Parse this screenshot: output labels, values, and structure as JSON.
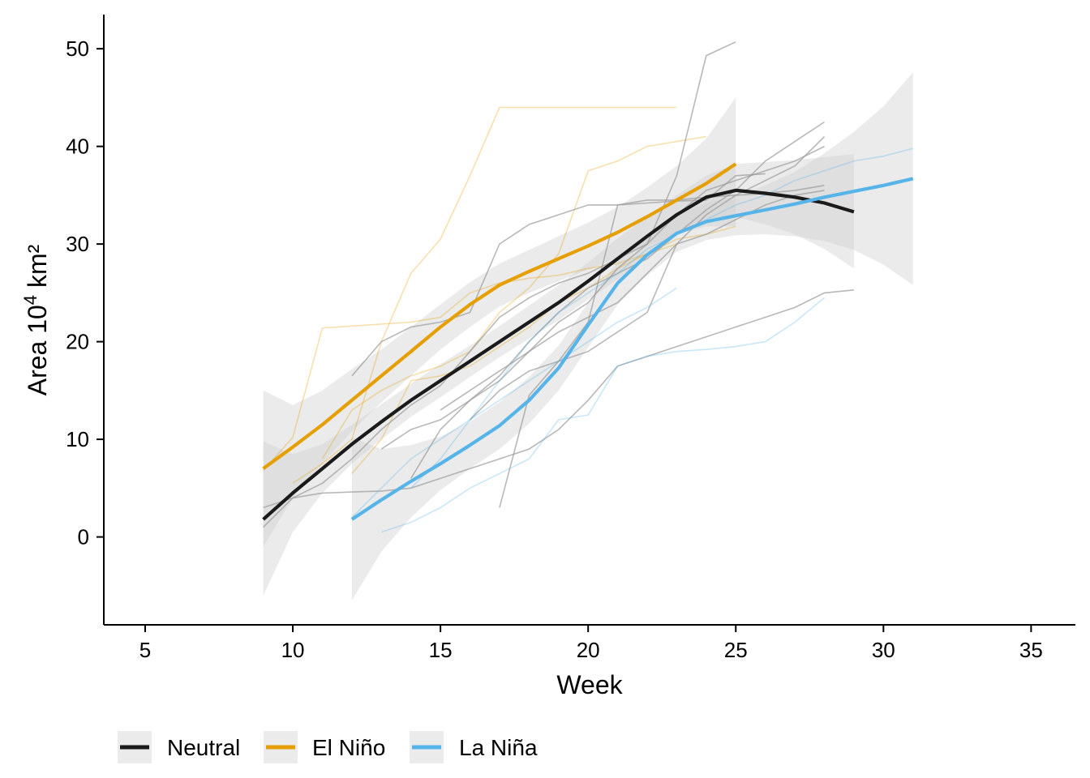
{
  "chart_data": {
    "type": "line",
    "xlabel": "Week",
    "ylabel": "Area 10",
    "ylabel_sup": "4",
    "ylabel_unit": " km²",
    "xlim": [
      3.6,
      36.5
    ],
    "ylim": [
      -9,
      53.5
    ],
    "xticks": [
      5,
      10,
      15,
      20,
      25,
      30,
      35
    ],
    "yticks": [
      0,
      10,
      20,
      30,
      40,
      50
    ],
    "grid": false,
    "legend_position": "bottom-left",
    "colors": {
      "Neutral": "#1a1a1a",
      "El Niño": "#E69F00",
      "La Niña": "#56B4E9",
      "ribbon": "#d0d0d0"
    },
    "series": [
      {
        "name": "Neutral",
        "x": [
          9,
          10,
          11,
          12,
          13,
          14,
          15,
          16,
          17,
          18,
          19,
          20,
          21,
          22,
          23,
          24,
          25,
          26,
          27,
          28,
          29
        ],
        "values": [
          1.8,
          4.5,
          7.0,
          9.5,
          11.8,
          14.0,
          16.0,
          18.0,
          20.0,
          22.0,
          24.0,
          26.2,
          28.5,
          30.8,
          33.0,
          34.8,
          35.5,
          35.2,
          34.8,
          34.2,
          33.3
        ],
        "ci_lower": [
          -6.0,
          0.5,
          4.5,
          7.5,
          10.0,
          12.3,
          14.3,
          16.4,
          18.4,
          20.3,
          22.2,
          24.3,
          26.4,
          28.8,
          31.0,
          32.6,
          32.8,
          32.0,
          31.0,
          29.5,
          27.5
        ],
        "ci_upper": [
          9.8,
          8.5,
          9.5,
          11.5,
          13.6,
          15.7,
          17.7,
          19.6,
          21.6,
          23.7,
          25.8,
          28.1,
          30.6,
          32.8,
          35.0,
          37.0,
          38.2,
          38.4,
          38.6,
          38.9,
          39.2
        ]
      },
      {
        "name": "El Niño",
        "x": [
          9,
          10,
          11,
          12,
          13,
          14,
          15,
          16,
          17,
          18,
          19,
          20,
          21,
          22,
          23,
          24,
          25
        ],
        "values": [
          7.0,
          9.2,
          11.5,
          14.0,
          16.5,
          19.0,
          21.5,
          23.8,
          25.8,
          27.2,
          28.5,
          29.8,
          31.2,
          32.8,
          34.5,
          36.2,
          38.2
        ],
        "ci_lower": [
          -1.0,
          4.0,
          7.5,
          10.8,
          13.8,
          16.5,
          19.2,
          21.5,
          23.6,
          25.0,
          26.2,
          27.4,
          28.6,
          29.8,
          31.0,
          31.8,
          31.8
        ],
        "ci_upper": [
          15.0,
          13.5,
          15.0,
          17.2,
          19.2,
          21.5,
          23.8,
          26.1,
          28.0,
          29.4,
          30.8,
          32.2,
          33.8,
          35.8,
          38.0,
          40.8,
          45.0
        ]
      },
      {
        "name": "La Niña",
        "x": [
          12,
          13,
          14,
          15,
          16,
          17,
          18,
          19,
          20,
          21,
          22,
          23,
          24,
          25,
          26,
          27,
          28,
          29,
          30,
          31
        ],
        "values": [
          1.8,
          3.8,
          5.7,
          7.5,
          9.4,
          11.4,
          14.0,
          17.3,
          21.7,
          26.0,
          28.9,
          31.1,
          32.3,
          32.9,
          33.5,
          34.1,
          34.8,
          35.4,
          36.0,
          36.7
        ],
        "ci_lower": [
          -6.5,
          -1.5,
          2.0,
          4.8,
          7.0,
          9.0,
          11.6,
          15.0,
          19.4,
          23.8,
          26.8,
          29.2,
          30.4,
          30.9,
          31.0,
          30.8,
          30.3,
          29.4,
          27.9,
          25.8
        ],
        "ci_upper": [
          10.2,
          9.0,
          9.4,
          10.3,
          11.8,
          13.8,
          16.4,
          19.6,
          24.0,
          28.2,
          31.0,
          33.0,
          34.2,
          34.9,
          36.0,
          37.4,
          39.3,
          41.5,
          44.1,
          47.6
        ]
      }
    ],
    "annual_traces": [
      {
        "group": "El Niño",
        "x": [
          9,
          10,
          11,
          12,
          13,
          14,
          15,
          16,
          17,
          18,
          19,
          20,
          21,
          22,
          23
        ],
        "values": [
          6.8,
          10.2,
          21.4,
          21.6,
          21.8,
          22.0,
          22.5,
          25.0,
          26.0,
          26.5,
          26.8,
          27.5,
          28.0,
          29.0,
          30.0
        ]
      },
      {
        "group": "El Niño",
        "x": [
          10,
          11,
          12,
          13,
          14,
          15,
          16,
          17,
          18,
          19,
          20,
          21,
          22,
          23
        ],
        "values": [
          5.5,
          7.5,
          10.0,
          20.0,
          27.0,
          30.5,
          37.0,
          44.0,
          44.0,
          44.0,
          44.0,
          44.0,
          44.0,
          44.0
        ]
      },
      {
        "group": "El Niño",
        "x": [
          11,
          12,
          13,
          14,
          15,
          16,
          17,
          18,
          19,
          20,
          21,
          22,
          23,
          24
        ],
        "values": [
          8.0,
          13.0,
          15.0,
          16.5,
          17.5,
          19.0,
          23.0,
          25.5,
          29.0,
          37.5,
          38.5,
          40.0,
          40.5,
          41.0
        ]
      },
      {
        "group": "El Niño",
        "x": [
          12,
          13,
          14,
          15,
          16,
          17,
          18,
          19,
          20,
          21,
          22,
          23,
          24,
          25
        ],
        "values": [
          6.5,
          10.0,
          16.0,
          16.5,
          17.5,
          19.5,
          21.5,
          24.0,
          25.5,
          27.5,
          29.0,
          30.5,
          31.0,
          31.8
        ]
      },
      {
        "group": "Neutral",
        "x": [
          9,
          10,
          11,
          12,
          13,
          14,
          15,
          16,
          17,
          18,
          19,
          20,
          21,
          22,
          23,
          24,
          25,
          26,
          27,
          28
        ],
        "values": [
          1.0,
          4.0,
          5.5,
          8.0,
          11.0,
          13.5,
          15.5,
          19.0,
          22.5,
          24.5,
          26.0,
          27.0,
          28.5,
          30.0,
          33.0,
          35.5,
          36.5,
          37.5,
          38.5,
          40.0
        ]
      },
      {
        "group": "Neutral",
        "x": [
          9,
          10,
          11,
          12,
          13,
          14,
          15,
          16,
          17,
          18,
          19,
          20,
          21,
          22,
          23,
          24,
          25,
          26,
          27,
          28,
          29
        ],
        "values": [
          3.0,
          4.0,
          4.5,
          4.6,
          4.7,
          5.0,
          6.0,
          7.0,
          8.0,
          9.0,
          11.0,
          14.0,
          17.5,
          18.5,
          19.5,
          20.5,
          21.5,
          22.5,
          23.5,
          25.0,
          25.3
        ]
      },
      {
        "group": "Neutral",
        "x": [
          12,
          13,
          14,
          15,
          16,
          17,
          18,
          19,
          20,
          21,
          22,
          23,
          24,
          25,
          26,
          27,
          28
        ],
        "values": [
          16.5,
          20.0,
          21.5,
          22.0,
          23.0,
          30.0,
          32.0,
          33.0,
          34.0,
          34.0,
          34.5,
          34.5,
          34.8,
          35.0,
          35.2,
          35.5,
          36.0
        ]
      },
      {
        "group": "Neutral",
        "x": [
          13,
          14,
          15,
          16,
          17,
          18,
          19,
          20,
          21,
          22,
          23,
          24,
          25
        ],
        "values": [
          9.0,
          11.0,
          12.0,
          14.0,
          16.0,
          19.0,
          22.0,
          24.0,
          27.5,
          30.0,
          37.0,
          49.3,
          50.7
        ]
      },
      {
        "group": "Neutral",
        "x": [
          14,
          15,
          16,
          17,
          18,
          19,
          20,
          21,
          22,
          23,
          24,
          25,
          26,
          27,
          28
        ],
        "values": [
          6.0,
          11.0,
          14.0,
          16.5,
          20.0,
          23.0,
          25.5,
          27.0,
          28.5,
          31.0,
          33.5,
          35.5,
          38.5,
          40.5,
          42.5
        ]
      },
      {
        "group": "Neutral",
        "x": [
          17,
          18,
          19,
          20,
          21,
          22,
          23,
          24,
          25,
          26
        ],
        "values": [
          3.0,
          14.5,
          18.0,
          22.0,
          34.0,
          34.2,
          34.4,
          34.5,
          37.0,
          37.2
        ]
      },
      {
        "group": "Neutral",
        "x": [
          15,
          16,
          17,
          18,
          19,
          20,
          21,
          22,
          23,
          24,
          25,
          26,
          27,
          28
        ],
        "values": [
          13.0,
          15.0,
          17.0,
          19.0,
          21.0,
          22.5,
          24.0,
          27.0,
          30.0,
          33.0,
          35.0,
          36.5,
          38.0,
          41.0
        ]
      },
      {
        "group": "Neutral",
        "x": [
          16,
          17,
          18,
          19,
          20,
          21,
          22,
          23,
          24,
          25,
          26,
          27,
          28
        ],
        "values": [
          12.0,
          15.0,
          17.0,
          18.0,
          19.0,
          21.0,
          23.0,
          30.0,
          31.0,
          32.5,
          34.0,
          35.0,
          35.5
        ]
      },
      {
        "group": "La Niña",
        "x": [
          13,
          14,
          15,
          16,
          17,
          18,
          19,
          20,
          21,
          22,
          23,
          24,
          25,
          26,
          27,
          28
        ],
        "values": [
          0.5,
          1.5,
          3.0,
          5.0,
          6.5,
          8.0,
          12.0,
          12.5,
          17.5,
          18.5,
          19.0,
          19.2,
          19.5,
          20.0,
          22.0,
          24.5
        ]
      },
      {
        "group": "La Niña",
        "x": [
          14,
          15,
          16,
          17,
          18,
          19,
          20,
          21,
          22,
          23,
          24,
          25,
          26,
          27,
          28,
          29,
          30,
          31
        ],
        "values": [
          5.0,
          8.0,
          12.0,
          16.0,
          20.0,
          23.0,
          25.0,
          27.0,
          29.5,
          31.0,
          32.5,
          34.0,
          35.0,
          36.5,
          37.5,
          38.5,
          39.0,
          39.8
        ]
      },
      {
        "group": "La Niña",
        "x": [
          12,
          13,
          14,
          15,
          16,
          17,
          18,
          19,
          20,
          21,
          22,
          23
        ],
        "values": [
          2.0,
          5.0,
          8.0,
          10.0,
          12.0,
          14.0,
          16.0,
          18.0,
          20.0,
          22.0,
          23.5,
          25.5
        ]
      }
    ]
  }
}
